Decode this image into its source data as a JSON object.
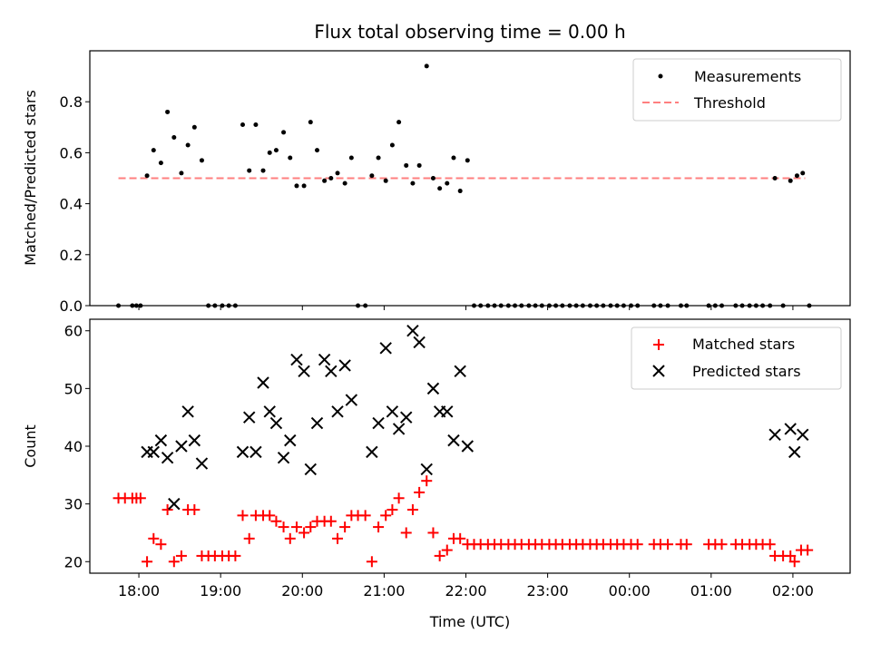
{
  "chart_data": [
    {
      "type": "scatter",
      "title": "Flux total observing time = 0.00 h",
      "xlabel": "",
      "ylabel": "Matched/Predicted stars",
      "ylim": [
        0,
        1.0
      ],
      "yticks": [
        "0.0",
        "0.2",
        "0.4",
        "0.6",
        "0.8"
      ],
      "xlim_hours": [
        17.4,
        26.7
      ],
      "legend": {
        "position": "top-right",
        "entries": [
          "Measurements",
          "Threshold"
        ]
      },
      "threshold": {
        "name": "Threshold",
        "y": 0.5,
        "x_start": 17.75,
        "x_end": 26.15,
        "color": "#ff7f7f"
      },
      "series": [
        {
          "name": "Measurements",
          "color": "#000000",
          "points": [
            [
              17.75,
              0
            ],
            [
              17.92,
              0
            ],
            [
              17.97,
              0
            ],
            [
              18.02,
              0
            ],
            [
              18.1,
              0.51
            ],
            [
              18.18,
              0.61
            ],
            [
              18.27,
              0.56
            ],
            [
              18.35,
              0.76
            ],
            [
              18.43,
              0.66
            ],
            [
              18.52,
              0.52
            ],
            [
              18.6,
              0.63
            ],
            [
              18.68,
              0.7
            ],
            [
              18.77,
              0.57
            ],
            [
              18.85,
              0
            ],
            [
              18.93,
              0
            ],
            [
              19.02,
              0
            ],
            [
              19.1,
              0
            ],
            [
              19.18,
              0
            ],
            [
              19.27,
              0.71
            ],
            [
              19.35,
              0.53
            ],
            [
              19.43,
              0.71
            ],
            [
              19.52,
              0.53
            ],
            [
              19.6,
              0.6
            ],
            [
              19.68,
              0.61
            ],
            [
              19.77,
              0.68
            ],
            [
              19.85,
              0.58
            ],
            [
              19.93,
              0.47
            ],
            [
              20.02,
              0.47
            ],
            [
              20.1,
              0.72
            ],
            [
              20.18,
              0.61
            ],
            [
              20.27,
              0.49
            ],
            [
              20.35,
              0.5
            ],
            [
              20.43,
              0.52
            ],
            [
              20.52,
              0.48
            ],
            [
              20.6,
              0.58
            ],
            [
              20.68,
              0
            ],
            [
              20.77,
              0
            ],
            [
              20.85,
              0.51
            ],
            [
              20.93,
              0.58
            ],
            [
              21.02,
              0.49
            ],
            [
              21.1,
              0.63
            ],
            [
              21.18,
              0.72
            ],
            [
              21.27,
              0.55
            ],
            [
              21.35,
              0.48
            ],
            [
              21.43,
              0.55
            ],
            [
              21.52,
              0.94
            ],
            [
              21.6,
              0.5
            ],
            [
              21.68,
              0.46
            ],
            [
              21.77,
              0.48
            ],
            [
              21.85,
              0.58
            ],
            [
              21.93,
              0.45
            ],
            [
              22.02,
              0.57
            ],
            [
              22.1,
              0
            ],
            [
              22.18,
              0
            ],
            [
              22.27,
              0
            ],
            [
              22.35,
              0
            ],
            [
              22.43,
              0
            ],
            [
              22.52,
              0
            ],
            [
              22.6,
              0
            ],
            [
              22.68,
              0
            ],
            [
              22.77,
              0
            ],
            [
              22.85,
              0
            ],
            [
              22.93,
              0
            ],
            [
              23.02,
              0
            ],
            [
              23.1,
              0
            ],
            [
              23.18,
              0
            ],
            [
              23.27,
              0
            ],
            [
              23.35,
              0
            ],
            [
              23.43,
              0
            ],
            [
              23.52,
              0
            ],
            [
              23.6,
              0
            ],
            [
              23.68,
              0
            ],
            [
              23.77,
              0
            ],
            [
              23.85,
              0
            ],
            [
              23.93,
              0
            ],
            [
              24.02,
              0
            ],
            [
              24.1,
              0
            ],
            [
              24.3,
              0
            ],
            [
              24.38,
              0
            ],
            [
              24.47,
              0
            ],
            [
              24.63,
              0
            ],
            [
              24.7,
              0
            ],
            [
              24.97,
              0
            ],
            [
              25.05,
              0
            ],
            [
              25.13,
              0
            ],
            [
              25.3,
              0
            ],
            [
              25.38,
              0
            ],
            [
              25.47,
              0
            ],
            [
              25.55,
              0
            ],
            [
              25.63,
              0
            ],
            [
              25.72,
              0
            ],
            [
              25.78,
              0.5
            ],
            [
              25.88,
              0
            ],
            [
              25.97,
              0.49
            ],
            [
              26.05,
              0.51
            ],
            [
              26.12,
              0.52
            ],
            [
              26.2,
              0
            ]
          ]
        }
      ]
    },
    {
      "type": "scatter",
      "title": "",
      "xlabel": "Time (UTC)",
      "ylabel": "Count",
      "ylim": [
        18,
        62
      ],
      "yticks": [
        "20",
        "30",
        "40",
        "50",
        "60"
      ],
      "xlim_hours": [
        17.4,
        26.7
      ],
      "xticks": [
        "18:00",
        "19:00",
        "20:00",
        "21:00",
        "22:00",
        "23:00",
        "00:00",
        "01:00",
        "02:00"
      ],
      "legend": {
        "position": "top-right",
        "entries": [
          "Matched stars",
          "Predicted stars"
        ]
      },
      "series": [
        {
          "name": "Matched stars",
          "marker": "plus",
          "color": "#ff0000",
          "points": [
            [
              17.75,
              31
            ],
            [
              17.83,
              31
            ],
            [
              17.92,
              31
            ],
            [
              17.97,
              31
            ],
            [
              18.02,
              31
            ],
            [
              18.1,
              20
            ],
            [
              18.18,
              24
            ],
            [
              18.27,
              23
            ],
            [
              18.35,
              29
            ],
            [
              18.43,
              20
            ],
            [
              18.52,
              21
            ],
            [
              18.6,
              29
            ],
            [
              18.68,
              29
            ],
            [
              18.77,
              21
            ],
            [
              18.85,
              21
            ],
            [
              18.93,
              21
            ],
            [
              19.02,
              21
            ],
            [
              19.1,
              21
            ],
            [
              19.18,
              21
            ],
            [
              19.27,
              28
            ],
            [
              19.35,
              24
            ],
            [
              19.43,
              28
            ],
            [
              19.52,
              28
            ],
            [
              19.6,
              28
            ],
            [
              19.68,
              27
            ],
            [
              19.77,
              26
            ],
            [
              19.85,
              24
            ],
            [
              19.93,
              26
            ],
            [
              20.02,
              25
            ],
            [
              20.1,
              26
            ],
            [
              20.18,
              27
            ],
            [
              20.27,
              27
            ],
            [
              20.35,
              27
            ],
            [
              20.43,
              24
            ],
            [
              20.52,
              26
            ],
            [
              20.6,
              28
            ],
            [
              20.68,
              28
            ],
            [
              20.77,
              28
            ],
            [
              20.85,
              20
            ],
            [
              20.93,
              26
            ],
            [
              21.02,
              28
            ],
            [
              21.1,
              29
            ],
            [
              21.18,
              31
            ],
            [
              21.27,
              25
            ],
            [
              21.35,
              29
            ],
            [
              21.43,
              32
            ],
            [
              21.52,
              34
            ],
            [
              21.6,
              25
            ],
            [
              21.68,
              21
            ],
            [
              21.77,
              22
            ],
            [
              21.85,
              24
            ],
            [
              21.93,
              24
            ],
            [
              22.02,
              23
            ],
            [
              22.1,
              23
            ],
            [
              22.18,
              23
            ],
            [
              22.27,
              23
            ],
            [
              22.35,
              23
            ],
            [
              22.43,
              23
            ],
            [
              22.52,
              23
            ],
            [
              22.6,
              23
            ],
            [
              22.68,
              23
            ],
            [
              22.77,
              23
            ],
            [
              22.85,
              23
            ],
            [
              22.93,
              23
            ],
            [
              23.02,
              23
            ],
            [
              23.1,
              23
            ],
            [
              23.18,
              23
            ],
            [
              23.27,
              23
            ],
            [
              23.35,
              23
            ],
            [
              23.43,
              23
            ],
            [
              23.52,
              23
            ],
            [
              23.6,
              23
            ],
            [
              23.68,
              23
            ],
            [
              23.77,
              23
            ],
            [
              23.85,
              23
            ],
            [
              23.93,
              23
            ],
            [
              24.02,
              23
            ],
            [
              24.1,
              23
            ],
            [
              24.3,
              23
            ],
            [
              24.38,
              23
            ],
            [
              24.47,
              23
            ],
            [
              24.63,
              23
            ],
            [
              24.7,
              23
            ],
            [
              24.97,
              23
            ],
            [
              25.05,
              23
            ],
            [
              25.13,
              23
            ],
            [
              25.3,
              23
            ],
            [
              25.38,
              23
            ],
            [
              25.47,
              23
            ],
            [
              25.55,
              23
            ],
            [
              25.63,
              23
            ],
            [
              25.72,
              23
            ],
            [
              25.78,
              21
            ],
            [
              25.88,
              21
            ],
            [
              25.97,
              21
            ],
            [
              26.02,
              20
            ],
            [
              26.1,
              22
            ],
            [
              26.18,
              22
            ]
          ]
        },
        {
          "name": "Predicted stars",
          "marker": "x",
          "color": "#000000",
          "points": [
            [
              18.1,
              39
            ],
            [
              18.18,
              39
            ],
            [
              18.27,
              41
            ],
            [
              18.35,
              38
            ],
            [
              18.43,
              30
            ],
            [
              18.52,
              40
            ],
            [
              18.6,
              46
            ],
            [
              18.68,
              41
            ],
            [
              18.77,
              37
            ],
            [
              19.27,
              39
            ],
            [
              19.35,
              45
            ],
            [
              19.43,
              39
            ],
            [
              19.52,
              51
            ],
            [
              19.6,
              46
            ],
            [
              19.68,
              44
            ],
            [
              19.77,
              38
            ],
            [
              19.85,
              41
            ],
            [
              19.93,
              55
            ],
            [
              20.02,
              53
            ],
            [
              20.1,
              36
            ],
            [
              20.18,
              44
            ],
            [
              20.27,
              55
            ],
            [
              20.35,
              53
            ],
            [
              20.43,
              46
            ],
            [
              20.52,
              54
            ],
            [
              20.6,
              48
            ],
            [
              20.85,
              39
            ],
            [
              20.93,
              44
            ],
            [
              21.02,
              57
            ],
            [
              21.1,
              46
            ],
            [
              21.18,
              43
            ],
            [
              21.27,
              45
            ],
            [
              21.35,
              60
            ],
            [
              21.43,
              58
            ],
            [
              21.52,
              36
            ],
            [
              21.6,
              50
            ],
            [
              21.68,
              46
            ],
            [
              21.77,
              46
            ],
            [
              21.85,
              41
            ],
            [
              21.93,
              53
            ],
            [
              22.02,
              40
            ],
            [
              25.78,
              42
            ],
            [
              25.97,
              43
            ],
            [
              26.02,
              39
            ],
            [
              26.12,
              42
            ]
          ]
        }
      ]
    }
  ]
}
